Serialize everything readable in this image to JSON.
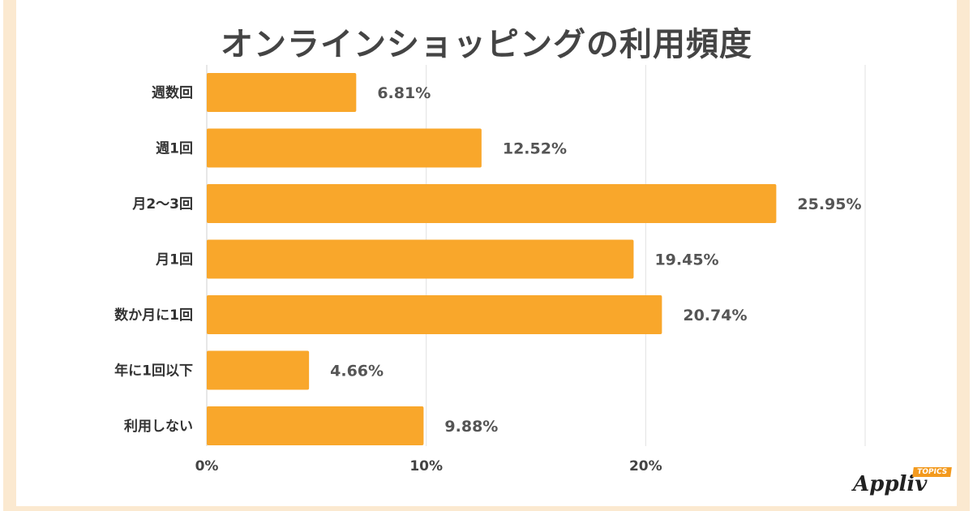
{
  "chart_data": {
    "type": "bar",
    "orientation": "horizontal",
    "title": "オンラインショッピングの利用頻度",
    "categories": [
      "週数回",
      "週1回",
      "月2〜3回",
      "月1回",
      "数か月に1回",
      "年に1回以下",
      "利用しない"
    ],
    "values": [
      6.81,
      12.52,
      25.95,
      19.45,
      20.74,
      4.66,
      9.88
    ],
    "data_labels": [
      "6.81%",
      "12.52%",
      "25.95%",
      "19.45%",
      "20.74%",
      "4.66%",
      "9.88%"
    ],
    "xlim": [
      0,
      30
    ],
    "xticks": [
      0,
      10,
      20,
      30
    ],
    "xtick_labels": [
      "0%",
      "10%",
      "20%",
      ""
    ],
    "grid": true,
    "xlabel": "",
    "ylabel": "",
    "bar_color": "#f9a72b"
  },
  "logo": {
    "name": "Appliv",
    "tag": "TOPICS"
  }
}
